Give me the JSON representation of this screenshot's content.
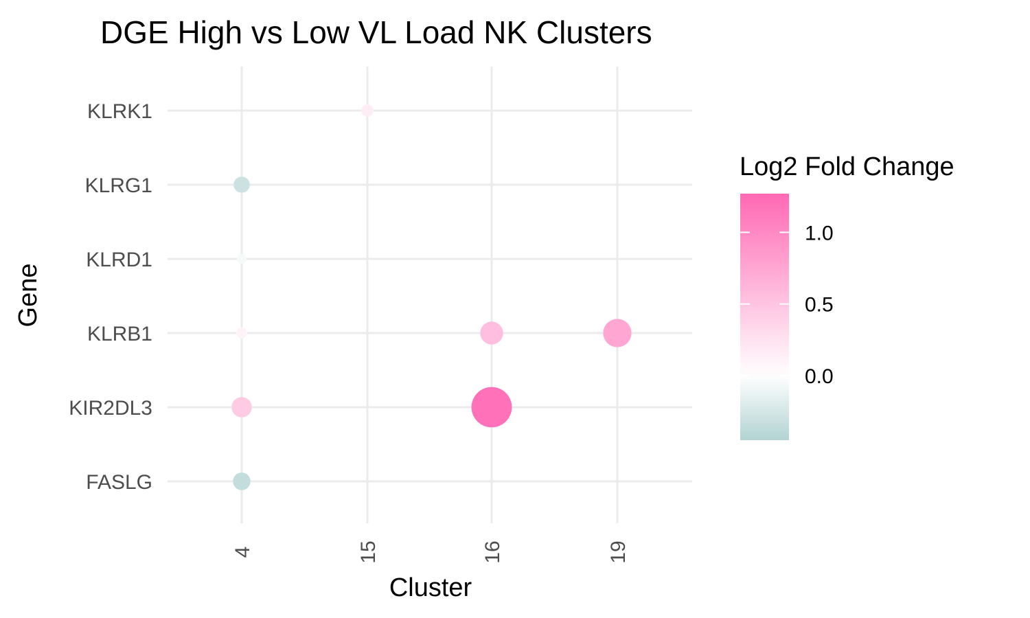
{
  "chart_data": {
    "type": "scatter",
    "title": "DGE High vs Low VL Load NK Clusters",
    "xlabel": "Cluster",
    "ylabel": "Gene",
    "x_categories": [
      "4",
      "15",
      "16",
      "19"
    ],
    "y_categories": [
      "FASLG",
      "KIR2DL3",
      "KLRB1",
      "KLRD1",
      "KLRG1",
      "KLRK1"
    ],
    "points": [
      {
        "cluster": "15",
        "gene": "KLRK1",
        "log2fc": 0.15
      },
      {
        "cluster": "4",
        "gene": "KLRG1",
        "log2fc": -0.3
      },
      {
        "cluster": "4",
        "gene": "KLRD1",
        "log2fc": -0.05
      },
      {
        "cluster": "4",
        "gene": "KLRB1",
        "log2fc": 0.1
      },
      {
        "cluster": "16",
        "gene": "KLRB1",
        "log2fc": 0.55
      },
      {
        "cluster": "19",
        "gene": "KLRB1",
        "log2fc": 0.75
      },
      {
        "cluster": "4",
        "gene": "KIR2DL3",
        "log2fc": 0.45
      },
      {
        "cluster": "16",
        "gene": "KIR2DL3",
        "log2fc": 1.2
      },
      {
        "cluster": "4",
        "gene": "FASLG",
        "log2fc": -0.35
      }
    ],
    "size_encoding": "absolute log2 fold change",
    "legend": {
      "title": "Log2 Fold Change",
      "placement": "right",
      "ticks": [
        "0.0",
        "0.5",
        "1.0"
      ],
      "tick_values": [
        0.0,
        0.5,
        1.0
      ],
      "range": [
        -0.45,
        1.27
      ]
    },
    "colors": {
      "low": "#b2d3d3",
      "mid": "#ffffff",
      "high": "#ff69b4"
    },
    "grid": true
  }
}
